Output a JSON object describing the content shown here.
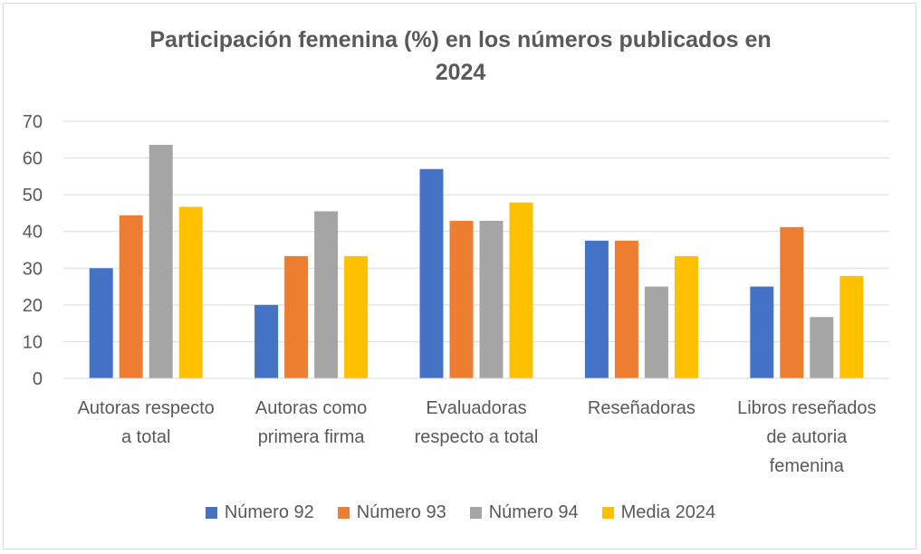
{
  "chart_data": {
    "type": "bar",
    "title_lines": [
      "Participación femenina (%) en los números publicados en",
      "2024"
    ],
    "categories": [
      [
        "Autoras respecto",
        "a total"
      ],
      [
        "Autoras como",
        "primera firma"
      ],
      [
        "Evaluadoras",
        "respecto a total"
      ],
      [
        "Reseñadoras"
      ],
      [
        "Libros reseñados",
        "de autoria",
        "femenina"
      ]
    ],
    "series": [
      {
        "name": "Número 92",
        "color": "#4472c4",
        "values": [
          30,
          20,
          57,
          37.5,
          25
        ]
      },
      {
        "name": "Número 93",
        "color": "#ed7d31",
        "values": [
          44.4,
          33.3,
          42.9,
          37.5,
          41.2
        ]
      },
      {
        "name": "Número 94",
        "color": "#a5a5a5",
        "values": [
          63.6,
          45.5,
          42.9,
          25,
          16.7
        ]
      },
      {
        "name": "Media 2024",
        "color": "#ffc000",
        "values": [
          46.7,
          33.3,
          47.9,
          33.3,
          27.9
        ]
      }
    ],
    "ylim": [
      0,
      70
    ],
    "yticks": [
      0,
      10,
      20,
      30,
      40,
      50,
      60,
      70
    ],
    "grid": true,
    "legend_position": "bottom"
  }
}
